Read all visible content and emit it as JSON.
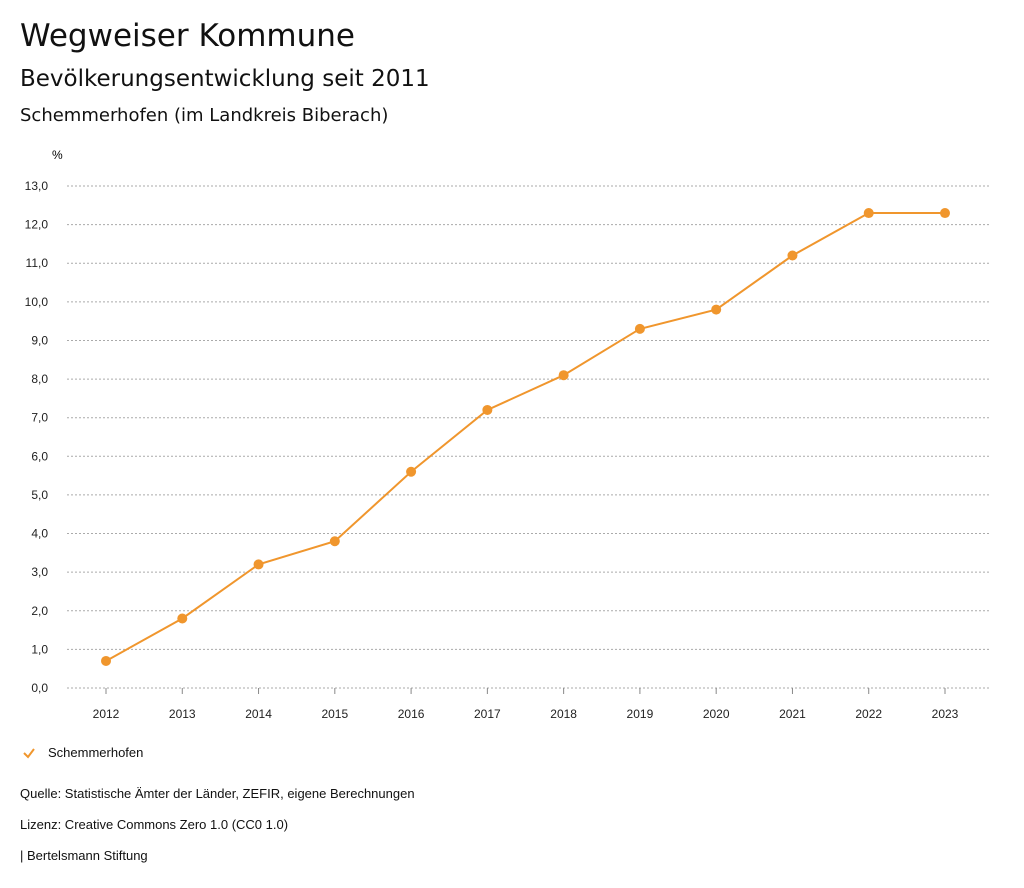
{
  "header": {
    "title": "Wegweiser Kommune",
    "subtitle": "Bevölkerungsentwicklung seit 2011",
    "region": "Schemmerhofen (im Landkreis Biberach)"
  },
  "chart_data": {
    "type": "line",
    "ylabel": "%",
    "x": [
      "2012",
      "2013",
      "2014",
      "2015",
      "2016",
      "2017",
      "2018",
      "2019",
      "2020",
      "2021",
      "2022",
      "2023"
    ],
    "series": [
      {
        "name": "Schemmerhofen",
        "color": "#f0962d",
        "values": [
          0.7,
          1.8,
          3.2,
          3.8,
          5.6,
          7.2,
          8.1,
          9.3,
          9.8,
          11.2,
          12.3,
          12.3
        ]
      }
    ],
    "ylim": [
      0,
      13
    ],
    "yticks": [
      "0,0",
      "1,0",
      "2,0",
      "3,0",
      "4,0",
      "5,0",
      "6,0",
      "7,0",
      "8,0",
      "9,0",
      "10,0",
      "11,0",
      "12,0",
      "13,0"
    ],
    "grid": true,
    "legend": "bottom-left"
  },
  "footer": {
    "source": "Quelle: Statistische Ämter der Länder, ZEFIR, eigene Berechnungen",
    "license": "Lizenz: Creative Commons Zero 1.0 (CC0 1.0)",
    "publisher": "| Bertelsmann Stiftung"
  }
}
